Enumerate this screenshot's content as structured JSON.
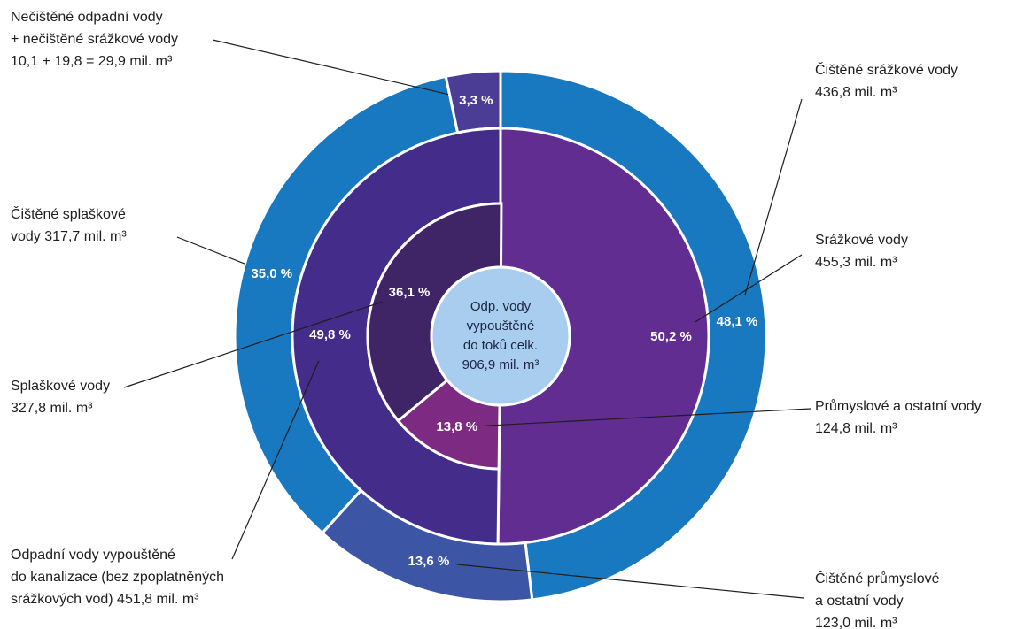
{
  "chart_data": {
    "type": "sunburst",
    "center_label": [
      "Odp. vody",
      "vypouštěné",
      "do toků celk.",
      "906,9 mil. m³"
    ],
    "center_color": "#a9cdee",
    "rings": [
      [
        {
          "label": [
            "Čištěné srážkové vody",
            "436,8 mil. m³"
          ],
          "value": 48.1,
          "value_label": "48,1 %",
          "color": "#1878c0"
        },
        {
          "label": [
            "Čištěné průmyslové",
            "a ostatní vody",
            "123,0 mil. m³"
          ],
          "value": 13.6,
          "value_label": "13,6 %",
          "color": "#3d55a5"
        },
        {
          "label": [
            "Čištěné splaškové",
            "vody 317,7 mil. m³"
          ],
          "value": 35.0,
          "value_label": "35,0 %",
          "color": "#1878c0"
        },
        {
          "label": [
            "Nečištěné odpadní vody",
            "+ nečištěné srážkové vody",
            "10,1 + 19,8 = 29,9 mil. m³"
          ],
          "value": 3.3,
          "value_label": "3,3 %",
          "color": "#4b3c96"
        }
      ],
      [
        {
          "label": [
            "Srážkové vody",
            "455,3 mil. m³"
          ],
          "value": 50.2,
          "value_label": "50,2 %",
          "color": "#612d91"
        },
        {
          "label": [
            "Odpadní vody vypouštěné",
            "do kanalizace (bez zpoplatněných",
            "srážkových vod) 451,8 mil. m³"
          ],
          "value": 49.8,
          "value_label": "49,8 %",
          "color": "#432c8a"
        }
      ],
      [
        {
          "label": [
            "Průmyslové a ostatní vody",
            "124,8 mil. m³"
          ],
          "value": 13.8,
          "value_label": "13,8 %",
          "color": "#7c2a82"
        },
        {
          "label": [
            "Splaškové vody",
            "327,8 mil. m³"
          ],
          "value": 36.1,
          "value_label": "36,1 %",
          "color": "#3f2566"
        }
      ]
    ]
  }
}
